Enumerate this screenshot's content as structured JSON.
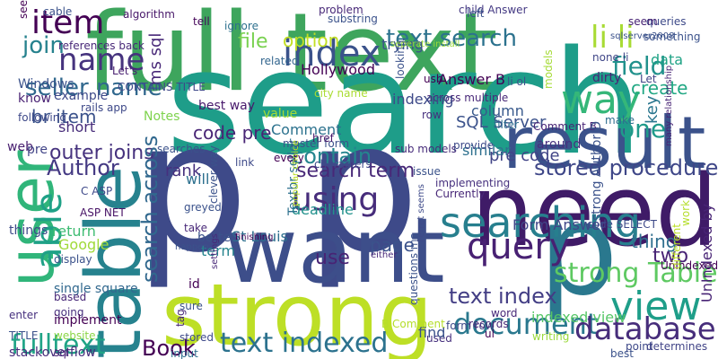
{
  "words": [
    {
      "text": "full text",
      "color": "#3ea55d"
    },
    {
      "text": "search",
      "color": "#1e9d89"
    },
    {
      "text": "p p",
      "color": "#3e4a89"
    },
    {
      "text": "need",
      "color": "#3f1b67"
    },
    {
      "text": "want",
      "color": "#3d4e8a"
    },
    {
      "text": "strong",
      "color": "#bddf26"
    },
    {
      "text": "table",
      "color": "#26828e"
    },
    {
      "text": "user",
      "color": "#30b57a"
    },
    {
      "text": "p",
      "color": "#2a788e"
    },
    {
      "text": "result",
      "color": "#3b528b"
    },
    {
      "text": "index",
      "color": "#3b528b"
    },
    {
      "text": "item",
      "color": "#440154"
    },
    {
      "text": "text search",
      "color": "#2c728e"
    },
    {
      "text": "li li",
      "color": "#a8db34"
    },
    {
      "text": "way",
      "color": "#35b779"
    },
    {
      "text": "field",
      "color": "#21918c"
    },
    {
      "text": "name",
      "color": "#46337e"
    },
    {
      "text": "join",
      "color": "#26828e"
    },
    {
      "text": "seller name",
      "color": "#31688e"
    },
    {
      "text": "searching",
      "color": "#277f8e"
    },
    {
      "text": "query",
      "color": "#482173"
    },
    {
      "text": "view",
      "color": "#1f9e89"
    },
    {
      "text": "using",
      "color": "#472d7b"
    },
    {
      "text": "document",
      "color": "#2a788e"
    },
    {
      "text": "database",
      "color": "#472d7b"
    },
    {
      "text": "text indexed",
      "color": "#2c728e"
    },
    {
      "text": "one",
      "color": "#1f9a8a"
    },
    {
      "text": "outer joins",
      "color": "#46327e"
    },
    {
      "text": "stored procedure",
      "color": "#3f4788"
    },
    {
      "text": "search term",
      "color": "#482878"
    },
    {
      "text": "contain",
      "color": "#25858e"
    },
    {
      "text": "text index",
      "color": "#433e85"
    },
    {
      "text": "strong Table",
      "color": "#5ec962"
    },
    {
      "text": "Author",
      "color": "#443983"
    },
    {
      "text": "br item",
      "color": "#3b528b"
    },
    {
      "text": "Book",
      "color": "#440154"
    },
    {
      "text": "fulltext",
      "color": "#20a486"
    },
    {
      "text": "able",
      "color": "#1fa187"
    },
    {
      "text": "search across",
      "color": "#31688e"
    },
    {
      "text": "file",
      "color": "#7ad151"
    },
    {
      "text": "option",
      "color": "#c2df23"
    },
    {
      "text": "Hollywood",
      "color": "#440154"
    },
    {
      "text": "trying",
      "color": "#3b528b"
    },
    {
      "text": "create",
      "color": "#22a884"
    },
    {
      "text": "Form Answer",
      "color": "#404688"
    },
    {
      "text": "thing",
      "color": "#2e6e8e"
    },
    {
      "text": "two",
      "color": "#482475"
    },
    {
      "text": "page",
      "color": "#3b528b"
    },
    {
      "text": "code pre",
      "color": "#482475"
    },
    {
      "text": "rank",
      "color": "#46307e"
    },
    {
      "text": "St Louis",
      "color": "#2e6f8e"
    },
    {
      "text": "SQL Server",
      "color": "#3b528b"
    },
    {
      "text": "pre code",
      "color": "#414487"
    },
    {
      "text": "use",
      "color": "#482374"
    },
    {
      "text": "term",
      "color": "#25848e"
    },
    {
      "text": "similar",
      "color": "#2d708e"
    },
    {
      "text": "column",
      "color": "#38598c"
    },
    {
      "text": "indexed view",
      "color": "#56c667"
    },
    {
      "text": "Answer B",
      "color": "#440154"
    },
    {
      "text": "Comment",
      "color": "#2c728e"
    },
    {
      "text": "key",
      "color": "#2a768e"
    },
    {
      "text": "deadline",
      "color": "#21918c"
    },
    {
      "text": "value",
      "color": "#a5db36"
    },
    {
      "text": "best way",
      "color": "#481a6c"
    },
    {
      "text": "Notes",
      "color": "#7fd34e"
    },
    {
      "text": "know",
      "color": "#482173"
    },
    {
      "text": "Windows",
      "color": "#3b528b"
    },
    {
      "text": "example",
      "color": "#3e4989"
    },
    {
      "text": "ms sql",
      "color": "#482878"
    },
    {
      "text": "algorithm",
      "color": "#48186a"
    },
    {
      "text": "related",
      "color": "#32658e"
    },
    {
      "text": "ignore",
      "color": "#2d708e"
    },
    {
      "text": "tell",
      "color": "#450559"
    },
    {
      "text": "problem",
      "color": "#482878"
    },
    {
      "text": "substring",
      "color": "#3b528b"
    },
    {
      "text": "child Answer",
      "color": "#443983"
    },
    {
      "text": "queries",
      "color": "#3e4a89"
    },
    {
      "text": "something",
      "color": "#3b528b"
    },
    {
      "text": "data",
      "color": "#20a386"
    },
    {
      "text": "dirty",
      "color": "#482576"
    },
    {
      "text": "none li",
      "color": "#404688"
    },
    {
      "text": "Let",
      "color": "#414487"
    },
    {
      "text": "following",
      "color": "#3e4989"
    },
    {
      "text": "short",
      "color": "#472c7a"
    },
    {
      "text": "web",
      "color": "#481f70"
    },
    {
      "text": "searches",
      "color": "#3b528b"
    },
    {
      "text": "C ASP",
      "color": "#3e4989"
    },
    {
      "text": "ASP NET",
      "color": "#481467"
    },
    {
      "text": "return",
      "color": "#3fbc73"
    },
    {
      "text": "Google",
      "color": "#a0da39"
    },
    {
      "text": "display",
      "color": "#3b528b"
    },
    {
      "text": "will",
      "color": "#2d708e"
    },
    {
      "text": "greyed",
      "color": "#3b528b"
    },
    {
      "text": "take",
      "color": "#482878"
    },
    {
      "text": "better",
      "color": "#3b528b"
    },
    {
      "text": "pre",
      "color": "#414487"
    },
    {
      "text": "things",
      "color": "#3e4a89"
    },
    {
      "text": "single square",
      "color": "#31688e"
    },
    {
      "text": "based",
      "color": "#482878"
    },
    {
      "text": "going",
      "color": "#472f7d"
    },
    {
      "text": "website",
      "color": "#8bd646"
    },
    {
      "text": "implement",
      "color": "#440154"
    },
    {
      "text": "sql",
      "color": "#482173"
    },
    {
      "text": "enter",
      "color": "#46307e"
    },
    {
      "text": "TITLE",
      "color": "#3b528b"
    },
    {
      "text": "stackoverflow",
      "color": "#472c7a"
    },
    {
      "text": "input",
      "color": "#2e6e8e"
    },
    {
      "text": "tag",
      "color": "#482878"
    },
    {
      "text": "stored",
      "color": "#3e4a89"
    },
    {
      "text": "sure",
      "color": "#3b528b"
    },
    {
      "text": "id",
      "color": "#440154"
    },
    {
      "text": "Textbr seller",
      "color": "#2d708e"
    },
    {
      "text": "link",
      "color": "#3e4a89"
    },
    {
      "text": "questions ms",
      "color": "#3b528b"
    },
    {
      "text": "used",
      "color": "#46307e"
    },
    {
      "text": "word",
      "color": "#482878"
    },
    {
      "text": "find",
      "color": "#3b528b"
    },
    {
      "text": "B Comment",
      "color": "#b5de2b"
    },
    {
      "text": "form row",
      "color": "#3e4a89"
    },
    {
      "text": "records",
      "color": "#482878"
    },
    {
      "text": "ul",
      "color": "#440154"
    },
    {
      "text": "writing",
      "color": "#9bd93c"
    },
    {
      "text": "best",
      "color": "#3b528b"
    },
    {
      "text": "point",
      "color": "#3e4989"
    },
    {
      "text": "determines",
      "color": "#414487"
    },
    {
      "text": "make",
      "color": "#2e6e8e"
    },
    {
      "text": "around",
      "color": "#46307e"
    },
    {
      "text": "Comment B",
      "color": "#482475"
    },
    {
      "text": "code SELECT",
      "color": "#3e4a89"
    },
    {
      "text": "strong AuthorID",
      "color": "#3b528b"
    },
    {
      "text": "UnIndexed",
      "color": "#440154"
    },
    {
      "text": "UnIndexed by",
      "color": "#482475"
    },
    {
      "text": "different",
      "color": "#bddf26"
    },
    {
      "text": "work",
      "color": "#b5de2b"
    },
    {
      "text": "sub models",
      "color": "#472c7a"
    },
    {
      "text": "provide",
      "color": "#3e4a89"
    },
    {
      "text": "issue",
      "color": "#3b528b"
    },
    {
      "text": "Currently",
      "color": "#482878"
    },
    {
      "text": "implementing",
      "color": "#46307e"
    },
    {
      "text": "characters",
      "color": "#3e4989"
    },
    {
      "text": "every",
      "color": "#440154"
    },
    {
      "text": "master form",
      "color": "#3b528b"
    },
    {
      "text": "href",
      "color": "#48186a"
    },
    {
      "text": "city name",
      "color": "#aadc32"
    },
    {
      "text": "across multiple",
      "color": "#482878"
    },
    {
      "text": "indexing",
      "color": "#3e4a89"
    },
    {
      "text": "looking",
      "color": "#3b528b"
    },
    {
      "text": "usb",
      "color": "#440154"
    },
    {
      "text": "filter",
      "color": "#2e6e8e"
    },
    {
      "text": "li ol",
      "color": "#3b528b"
    },
    {
      "text": "row",
      "color": "#46307e"
    },
    {
      "text": "models",
      "color": "#a5db36"
    },
    {
      "text": "left",
      "color": "#3b528b"
    },
    {
      "text": "seem",
      "color": "#482475"
    },
    {
      "text": "rails app",
      "color": "#3e4989"
    },
    {
      "text": "Let's",
      "color": "#481f70"
    },
    {
      "text": "CONTAINS TITLE",
      "color": "#3e4989"
    },
    {
      "text": "references back",
      "color": "#482878"
    },
    {
      "text": "cable",
      "color": "#3b528b"
    },
    {
      "text": "see",
      "color": "#440154"
    },
    {
      "text": "seperate install",
      "color": "#9bd93c"
    },
    {
      "text": "sqlserver2008",
      "color": "#3b528b"
    },
    {
      "text": "many relationship",
      "color": "#482475"
    },
    {
      "text": "popular choice",
      "color": "#bddf26"
    },
    {
      "text": "Ferret seems",
      "color": "#3e4a89"
    },
    {
      "text": "clever way",
      "color": "#3b528b"
    },
    {
      "text": "settings",
      "color": "#482878"
    },
    {
      "text": "finishing",
      "color": "#440154"
    },
    {
      "text": "happen",
      "color": "#3b528b"
    },
    {
      "text": "either",
      "color": "#482878"
    },
    {
      "text": "SELECT",
      "color": "#440154"
    }
  ]
}
